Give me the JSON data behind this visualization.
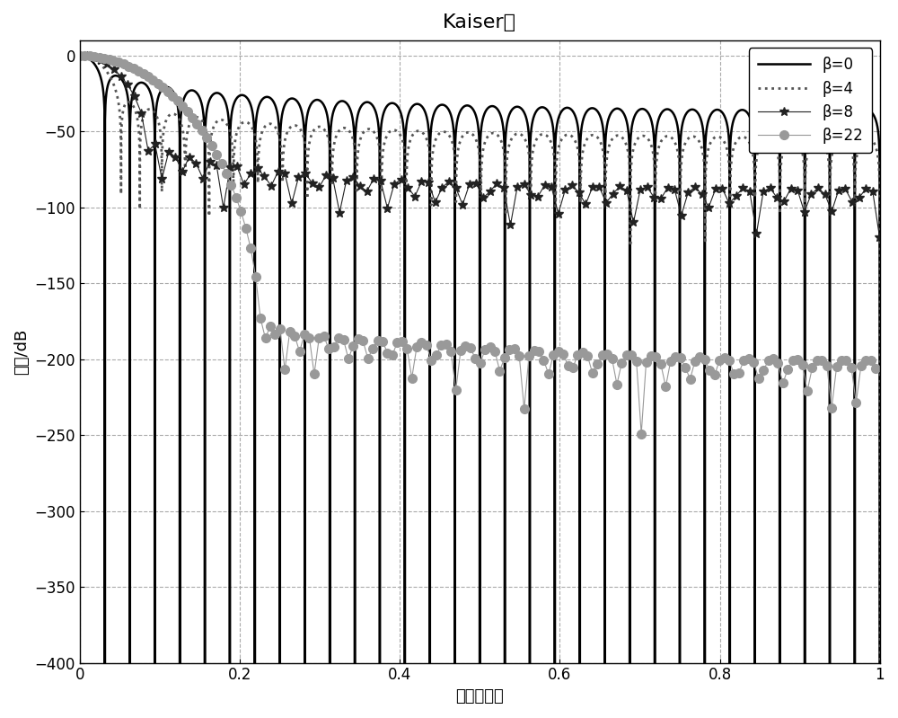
{
  "title": "Kaiser窗",
  "xlabel": "归一化频率",
  "ylabel": "振幅/dB",
  "xlim": [
    0,
    1
  ],
  "ylim": [
    -400,
    10
  ],
  "yticks": [
    0,
    -50,
    -100,
    -150,
    -200,
    -250,
    -300,
    -350,
    -400
  ],
  "xticks": [
    0,
    0.2,
    0.4,
    0.6,
    0.8,
    1.0
  ],
  "xticklabels": [
    "0",
    "0.2",
    "0.4",
    "0.6",
    "0.8",
    "1"
  ],
  "N": 64,
  "betas": [
    0,
    4,
    8,
    22
  ],
  "colors_line": [
    "#000000",
    "#555555",
    "#222222",
    "#999999"
  ],
  "legend_labels": [
    "β=0",
    "β=4",
    "β=8",
    "β=22"
  ],
  "background_color": "#ffffff",
  "grid_color": "#aaaaaa",
  "title_fontsize": 16,
  "label_fontsize": 13,
  "tick_fontsize": 12,
  "NFFT": 8192,
  "marker_step_beta8": 35,
  "marker_step_beta22": 25,
  "marker_size_beta8": 7,
  "marker_size_beta22": 7
}
